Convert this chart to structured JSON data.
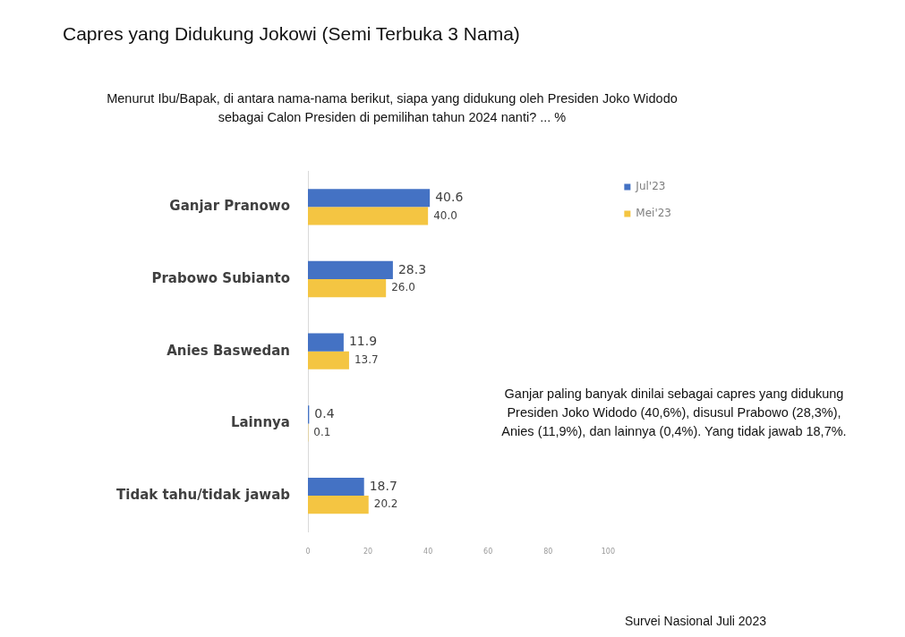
{
  "chart_data": {
    "type": "bar",
    "orientation": "horizontal",
    "title": "Capres yang Didukung Jokowi (Semi Terbuka 3 Nama)",
    "subtitle": "Menurut Ibu/Bapak, di antara nama-nama berikut, siapa yang didukung oleh Presiden Joko Widodo sebagai Calon Presiden di pemilihan tahun 2024 nanti? ... %",
    "categories": [
      "Ganjar Pranowo",
      "Prabowo Subianto",
      "Anies Baswedan",
      "Lainnya",
      "Tidak tahu/tidak jawab"
    ],
    "series": [
      {
        "name": "Jul'23",
        "color": "#4472c4",
        "values": [
          40.6,
          28.3,
          11.9,
          0.4,
          18.7
        ],
        "value_labels": [
          "40.6",
          "28.3",
          "11.9",
          "0.4",
          "18.7"
        ]
      },
      {
        "name": "Mei'23",
        "color": "#f4c542",
        "values": [
          40.0,
          26.0,
          13.7,
          0.1,
          20.2
        ],
        "value_labels": [
          "40.0",
          "26.0",
          "13.7",
          "0.1",
          "20.2"
        ]
      }
    ],
    "xlim": [
      0,
      100
    ],
    "xticks": [
      0,
      20,
      40,
      60,
      80,
      100
    ],
    "grid": false,
    "legend": "top right",
    "annotations": [
      "Ganjar paling banyak dinilai sebagai capres yang didukung Presiden Joko Widodo (40,6%), disusul Prabowo (28,3%), Anies (11,9%), dan lainnya (0,4%). Yang tidak jawab 18,7%.",
      "Survei Nasional Juli 2023"
    ]
  }
}
